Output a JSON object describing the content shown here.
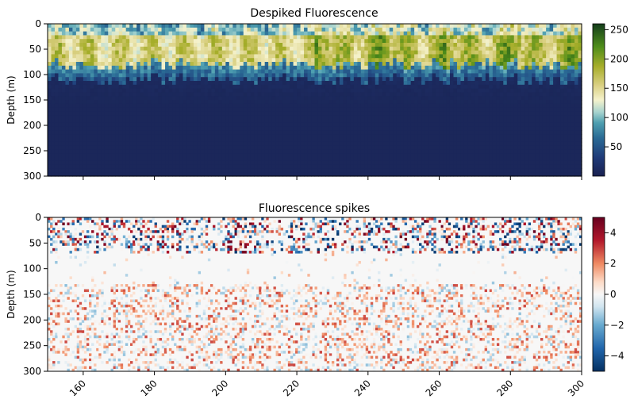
{
  "chart_data": [
    {
      "type": "heatmap",
      "title": "Despiked Fluorescence",
      "xlabel": "",
      "ylabel": "Depth (m)",
      "xlim": [
        150,
        300
      ],
      "ylim": [
        300,
        0
      ],
      "y_inverted": true,
      "y_ticks": [
        "0",
        "50",
        "100",
        "150",
        "200",
        "250",
        "300"
      ],
      "x_tick_labels_shown": false,
      "colormap": "ocean-delta",
      "colorbar": {
        "range": [
          0,
          260
        ],
        "ticks": [
          "50",
          "100",
          "150",
          "200",
          "250"
        ]
      },
      "description_values": {
        "surface_layer_depth_range": [
          0,
          80
        ],
        "surface_layer_value_range": [
          130,
          260
        ],
        "deep_value": 5
      }
    },
    {
      "type": "heatmap",
      "title": "Fluorescence spikes",
      "xlabel": "",
      "ylabel": "Depth (m)",
      "xlim": [
        150,
        300
      ],
      "ylim": [
        300,
        0
      ],
      "y_inverted": true,
      "x_ticks": [
        "160",
        "180",
        "200",
        "220",
        "240",
        "260",
        "280",
        "300"
      ],
      "y_ticks": [
        "0",
        "50",
        "100",
        "150",
        "200",
        "250",
        "300"
      ],
      "colormap": "RdBu_r",
      "colorbar": {
        "range": [
          -5,
          5
        ],
        "ticks": [
          "4",
          "2",
          "0",
          "−2",
          "−4"
        ]
      }
    }
  ]
}
